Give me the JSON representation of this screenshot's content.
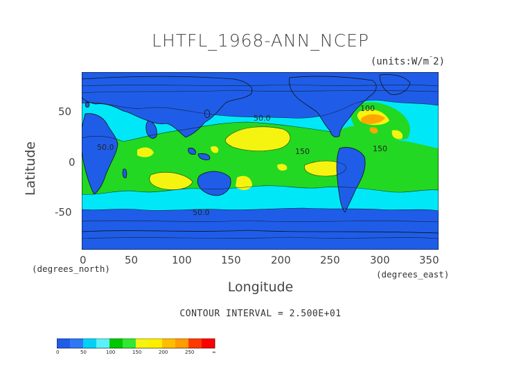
{
  "title": "LHTFL_1968-ANN_NCEP",
  "units": "(units:W/m^2)",
  "axes": {
    "y_label": "Latitude",
    "x_label": "Longitude",
    "y_unit": "(degrees_north)",
    "x_unit": "(degrees_east)",
    "y_ticks": [
      "50",
      "0",
      "-50"
    ],
    "x_ticks": [
      "0",
      "50",
      "100",
      "150",
      "200",
      "250",
      "300",
      "350"
    ]
  },
  "contour_interval_text": "CONTOUR INTERVAL = 2.500E+01",
  "contour_labels": [
    "50.0",
    "50.0",
    "150",
    "50.0",
    "150",
    "100"
  ],
  "legend": {
    "labels": [
      "0",
      "50",
      "100",
      "150",
      "200",
      "250",
      "∞"
    ],
    "colors": [
      "#1f5de8",
      "#2f78f4",
      "#00d2f6",
      "#5cf1fa",
      "#00c800",
      "#33e833",
      "#f4f410",
      "#ffee00",
      "#ffbd00",
      "#ff9c00",
      "#ff3a00",
      "#ff0000"
    ]
  },
  "map_colors": {
    "ocean_low": "#1f5de8",
    "band_50_100": "#00e8f8",
    "band_100_150": "#22d822",
    "band_150_200": "#f4f410",
    "band_200_250": "#ffa600",
    "land_low": "#1f5de8"
  }
}
